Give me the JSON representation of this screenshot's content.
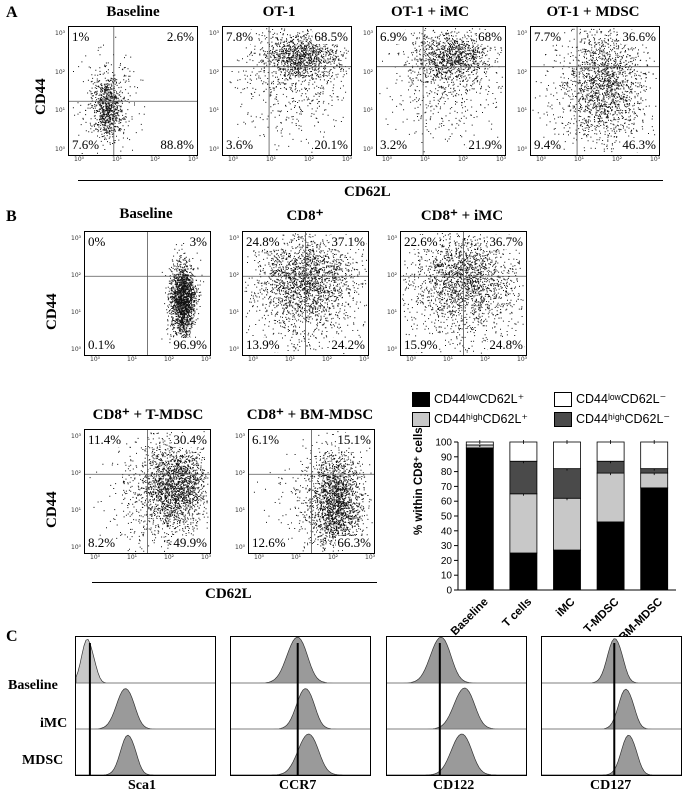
{
  "panels": {
    "a": "A",
    "b": "B",
    "c": "C"
  },
  "axis": {
    "cd44": "CD44",
    "cd62l": "CD62L"
  },
  "tick_labels": [
    "10⁰",
    "10¹",
    "10²",
    "10³"
  ],
  "panel_a": [
    {
      "title": "Baseline",
      "q": [
        "1%",
        "2.6%",
        "7.6%",
        "88.8%"
      ]
    },
    {
      "title": "OT-1",
      "q": [
        "7.8%",
        "68.5%",
        "3.6%",
        "20.1%"
      ]
    },
    {
      "title": "OT-1 + iMC",
      "q": [
        "6.9%",
        "68%",
        "3.2%",
        "21.9%"
      ]
    },
    {
      "title": "OT-1 + MDSC",
      "q": [
        "7.7%",
        "36.6%",
        "9.4%",
        "46.3%"
      ]
    }
  ],
  "panel_b": [
    {
      "title": "Baseline",
      "q": [
        "0%",
        "3%",
        "0.1%",
        "96.9%"
      ]
    },
    {
      "title": "CD8⁺",
      "q": [
        "24.8%",
        "37.1%",
        "13.9%",
        "24.2%"
      ]
    },
    {
      "title": "CD8⁺ + iMC",
      "q": [
        "22.6%",
        "36.7%",
        "15.9%",
        "24.8%"
      ]
    },
    {
      "title": "CD8⁺ + T-MDSC",
      "q": [
        "11.4%",
        "30.4%",
        "8.2%",
        "49.9%"
      ]
    },
    {
      "title": "CD8⁺ + BM-MDSC",
      "q": [
        "6.1%",
        "15.1%",
        "12.6%",
        "66.3%"
      ]
    }
  ],
  "legend": [
    {
      "label": "CD44ˡᵒʷCD62L⁺",
      "color": "#000000"
    },
    {
      "label": "CD44ˡᵒʷCD62L⁻",
      "color": "#ffffff"
    },
    {
      "label": "CD44ʰⁱᵍʰCD62L⁺",
      "color": "#c8c8c8"
    },
    {
      "label": "CD44ʰⁱᵍʰCD62L⁻",
      "color": "#4a4a4a"
    }
  ],
  "chart_data": {
    "type": "bar",
    "stacked": true,
    "title": "",
    "xlabel": "",
    "ylabel": "% within CD8⁺ cells",
    "ylim": [
      0,
      100
    ],
    "yticks": [
      0,
      10,
      20,
      30,
      40,
      50,
      60,
      70,
      80,
      90,
      100
    ],
    "categories": [
      "Baseline",
      "T cells",
      "iMC",
      "T-MDSC",
      "BM-MDSC"
    ],
    "series": [
      {
        "name": "CD44lowCD62L+",
        "color": "#000000",
        "values": [
          96,
          25,
          27,
          46,
          69
        ]
      },
      {
        "name": "CD44highCD62L+",
        "color": "#c8c8c8",
        "values": [
          2,
          40,
          35,
          33,
          10
        ]
      },
      {
        "name": "CD44highCD62L-",
        "color": "#4a4a4a",
        "values": [
          0,
          22,
          20,
          8,
          3
        ]
      },
      {
        "name": "CD44lowCD62L-",
        "color": "#ffffff",
        "values": [
          2,
          13,
          18,
          13,
          18
        ]
      }
    ]
  },
  "panel_c": {
    "row_labels": [
      "Baseline",
      "iMC",
      "MDSC"
    ],
    "markers": [
      "Sca1",
      "CCR7",
      "CD122",
      "CD127"
    ]
  }
}
